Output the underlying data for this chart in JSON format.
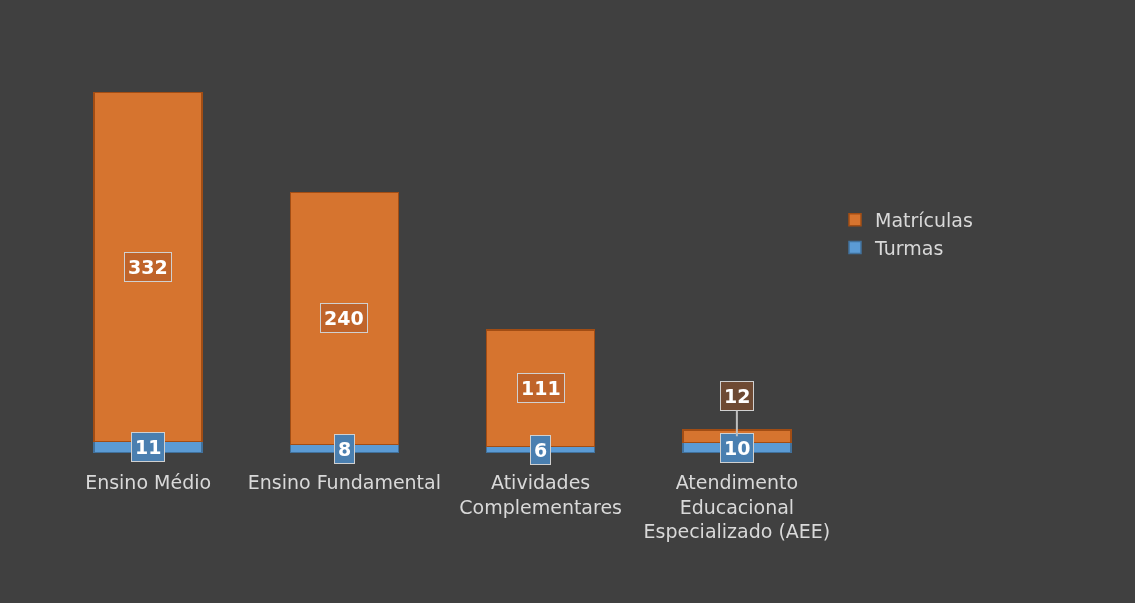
{
  "chart_data": {
    "type": "bar",
    "stacked": true,
    "categories": [
      "Ensino Médio",
      "Ensino Fundamental",
      "Atividades Complementares",
      "Atendimento Educacional Especializado (AEE)"
    ],
    "series": [
      {
        "name": "Turmas",
        "color": "#5b9bd5",
        "values": [
          11,
          8,
          6,
          10
        ]
      },
      {
        "name": "Matrículas",
        "color": "#d6742f",
        "values": [
          332,
          240,
          111,
          12
        ]
      }
    ],
    "data_labels": true,
    "legend": "right",
    "tick_labels": "x"
  }
}
